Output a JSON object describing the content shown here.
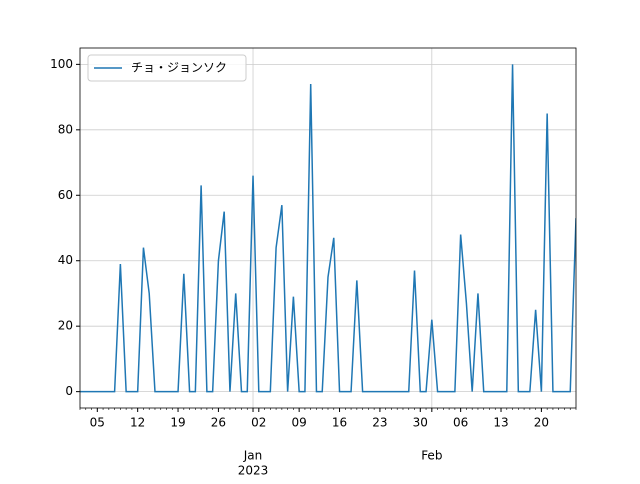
{
  "chart_data": {
    "type": "line",
    "x": [
      "2022-12-02",
      "2022-12-03",
      "2022-12-04",
      "2022-12-05",
      "2022-12-06",
      "2022-12-07",
      "2022-12-08",
      "2022-12-09",
      "2022-12-10",
      "2022-12-11",
      "2022-12-12",
      "2022-12-13",
      "2022-12-14",
      "2022-12-15",
      "2022-12-16",
      "2022-12-17",
      "2022-12-18",
      "2022-12-19",
      "2022-12-20",
      "2022-12-21",
      "2022-12-22",
      "2022-12-23",
      "2022-12-24",
      "2022-12-25",
      "2022-12-26",
      "2022-12-27",
      "2022-12-28",
      "2022-12-29",
      "2022-12-30",
      "2022-12-31",
      "2023-01-01",
      "2023-01-02",
      "2023-01-03",
      "2023-01-04",
      "2023-01-05",
      "2023-01-06",
      "2023-01-07",
      "2023-01-08",
      "2023-01-09",
      "2023-01-10",
      "2023-01-11",
      "2023-01-12",
      "2023-01-13",
      "2023-01-14",
      "2023-01-15",
      "2023-01-16",
      "2023-01-17",
      "2023-01-18",
      "2023-01-19",
      "2023-01-20",
      "2023-01-21",
      "2023-01-22",
      "2023-01-23",
      "2023-01-24",
      "2023-01-25",
      "2023-01-26",
      "2023-01-27",
      "2023-01-28",
      "2023-01-29",
      "2023-01-30",
      "2023-01-31",
      "2023-02-01",
      "2023-02-02",
      "2023-02-03",
      "2023-02-04",
      "2023-02-05",
      "2023-02-06",
      "2023-02-07",
      "2023-02-08",
      "2023-02-09",
      "2023-02-10",
      "2023-02-11",
      "2023-02-12",
      "2023-02-13",
      "2023-02-14",
      "2023-02-15",
      "2023-02-16",
      "2023-02-17",
      "2023-02-18",
      "2023-02-19",
      "2023-02-20",
      "2023-02-21",
      "2023-02-22",
      "2023-02-23",
      "2023-02-24",
      "2023-02-25",
      "2023-02-26"
    ],
    "series": [
      {
        "name": "チョ・ジョンソク",
        "color": "#1f77b4",
        "values": [
          0,
          0,
          0,
          0,
          0,
          0,
          0,
          39,
          0,
          0,
          0,
          44,
          30,
          0,
          0,
          0,
          0,
          0,
          36,
          0,
          0,
          63,
          0,
          0,
          40,
          55,
          0,
          30,
          0,
          0,
          66,
          0,
          0,
          0,
          44,
          57,
          0,
          29,
          0,
          0,
          94,
          0,
          0,
          35,
          47,
          0,
          0,
          0,
          34,
          0,
          0,
          0,
          0,
          0,
          0,
          0,
          0,
          0,
          37,
          0,
          0,
          22,
          0,
          0,
          0,
          0,
          48,
          27,
          0,
          30,
          0,
          0,
          0,
          0,
          0,
          100,
          0,
          0,
          0,
          25,
          0,
          85,
          0,
          0,
          0,
          0,
          53
        ]
      }
    ],
    "xlim": [
      "2022-12-02",
      "2023-02-26"
    ],
    "xticks": [
      {
        "value": "2022-12-05",
        "label": "05"
      },
      {
        "value": "2022-12-12",
        "label": "12"
      },
      {
        "value": "2022-12-19",
        "label": "19"
      },
      {
        "value": "2022-12-26",
        "label": "26"
      },
      {
        "value": "2023-01-02",
        "label": "02"
      },
      {
        "value": "2023-01-09",
        "label": "09"
      },
      {
        "value": "2023-01-16",
        "label": "16"
      },
      {
        "value": "2023-01-23",
        "label": "23"
      },
      {
        "value": "2023-01-30",
        "label": "30"
      },
      {
        "value": "2023-02-06",
        "label": "06"
      },
      {
        "value": "2023-02-13",
        "label": "13"
      },
      {
        "value": "2023-02-20",
        "label": "20"
      }
    ],
    "xmajorticks": [
      {
        "value": "2023-01-01",
        "label": "Jan",
        "sublabel": "2023"
      },
      {
        "value": "2023-02-01",
        "label": "Feb"
      }
    ],
    "ylim": [
      -5,
      105
    ],
    "yticks": [
      0,
      20,
      40,
      60,
      80,
      100
    ],
    "grid": true,
    "legend": "upper left"
  }
}
